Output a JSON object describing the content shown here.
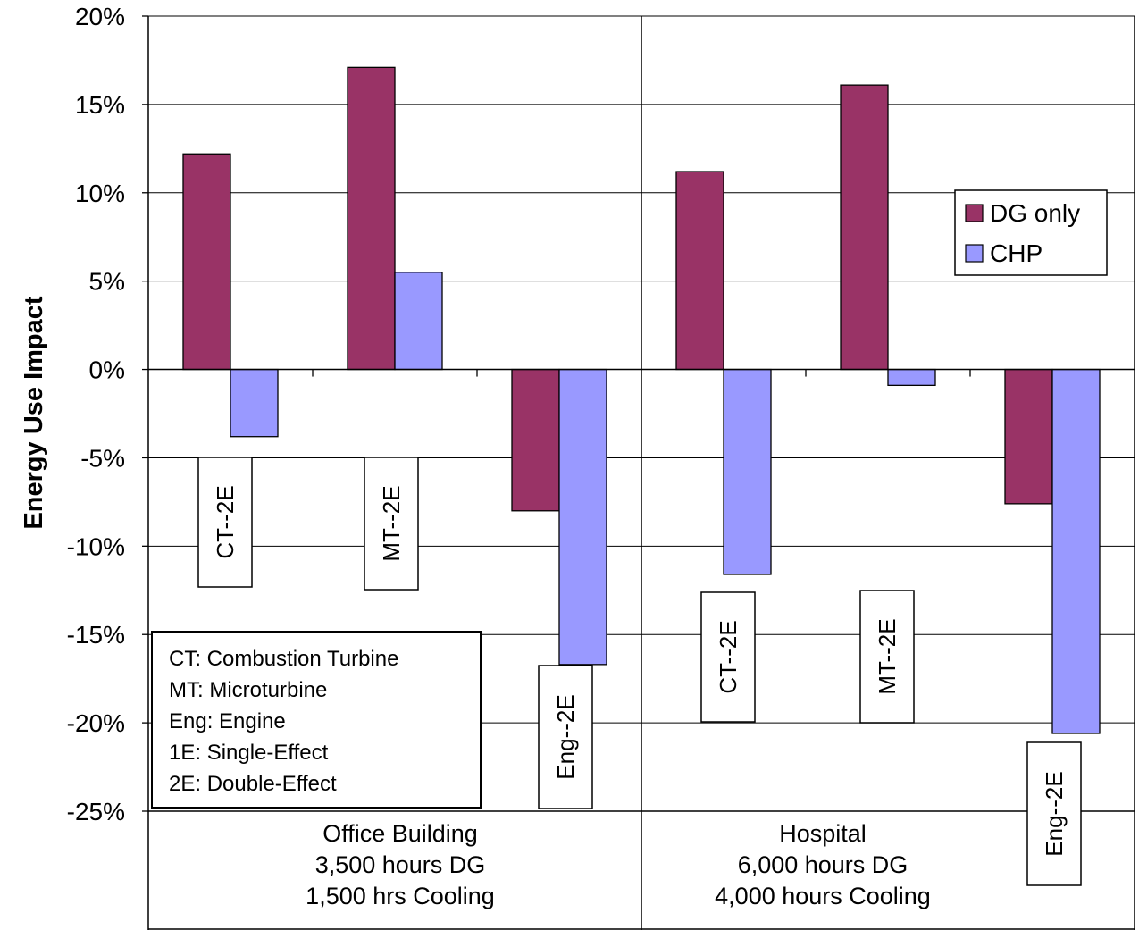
{
  "chart_data": {
    "type": "bar",
    "ylabel": "Energy Use Impact",
    "ylim": [
      -25,
      20
    ],
    "y_ticks": [
      "20%",
      "15%",
      "10%",
      "5%",
      "0%",
      "-5%",
      "-10%",
      "-15%",
      "-20%",
      "-25%"
    ],
    "y_tick_values": [
      20,
      15,
      10,
      5,
      0,
      -5,
      -10,
      -15,
      -20,
      -25
    ],
    "grid": "horizontal",
    "legend_position": "right",
    "series": [
      {
        "name": "DG only",
        "color": "#993366",
        "values": [
          12.2,
          17.1,
          -8.0,
          11.2,
          16.1,
          -7.6
        ]
      },
      {
        "name": "CHP",
        "color": "#9999ff",
        "values": [
          -3.8,
          5.5,
          -16.7,
          -11.6,
          -0.9,
          -20.6
        ]
      }
    ],
    "bar_labels": [
      "CT--2E",
      "MT--2E",
      "Eng--2E",
      "CT--2E",
      "MT--2E",
      "Eng--2E"
    ],
    "groups": [
      {
        "lines": [
          "Office Building",
          "3,500 hours DG",
          "1,500 hrs Cooling"
        ]
      },
      {
        "lines": [
          "Hospital",
          "6,000 hours DG",
          "4,000 hours Cooling"
        ]
      }
    ],
    "key_legend": [
      "CT:  Combustion Turbine",
      "MT:  Microturbine",
      "Eng:  Engine",
      "1E:  Single-Effect",
      "2E:  Double-Effect"
    ]
  }
}
